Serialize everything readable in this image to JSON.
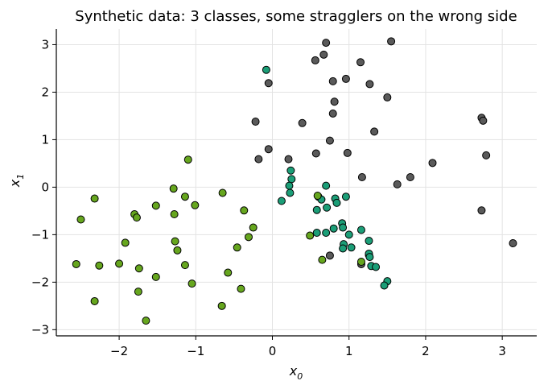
{
  "chart_data": {
    "type": "scatter",
    "title": "Synthetic data: 3 classes, some stragglers on the wrong side",
    "xlabel": "x",
    "xlabel_sub": "0",
    "ylabel": "x",
    "ylabel_sub": "1",
    "xlim": [
      -2.82,
      3.45
    ],
    "ylim": [
      -3.13,
      3.33
    ],
    "xticks": [
      -2,
      -1,
      0,
      1,
      2,
      3
    ],
    "yticks": [
      -3,
      -2,
      -1,
      0,
      1,
      2,
      3
    ],
    "xtick_labels": [
      "−2",
      "−1",
      "0",
      "1",
      "2",
      "3"
    ],
    "ytick_labels": [
      "−3",
      "−2",
      "−1",
      "0",
      "1",
      "2",
      "3"
    ],
    "grid": true,
    "marker_edge_color": "#000000",
    "series": [
      {
        "color": "#5a5a5a",
        "points": [
          [
            0.7,
            3.04
          ],
          [
            1.55,
            3.07
          ],
          [
            0.67,
            2.79
          ],
          [
            0.56,
            2.67
          ],
          [
            1.15,
            2.63
          ],
          [
            -0.05,
            2.19
          ],
          [
            0.79,
            2.23
          ],
          [
            0.96,
            2.28
          ],
          [
            1.27,
            2.17
          ],
          [
            1.5,
            1.89
          ],
          [
            0.81,
            1.8
          ],
          [
            0.79,
            1.55
          ],
          [
            -0.22,
            1.38
          ],
          [
            0.39,
            1.35
          ],
          [
            1.33,
            1.17
          ],
          [
            0.75,
            0.98
          ],
          [
            -0.05,
            0.8
          ],
          [
            0.98,
            0.72
          ],
          [
            0.57,
            0.71
          ],
          [
            -0.18,
            0.59
          ],
          [
            0.21,
            0.59
          ],
          [
            2.09,
            0.51
          ],
          [
            1.17,
            0.21
          ],
          [
            1.8,
            0.21
          ],
          [
            1.63,
            0.06
          ],
          [
            2.73,
            1.46
          ],
          [
            2.75,
            1.4
          ],
          [
            2.79,
            0.67
          ],
          [
            2.73,
            -0.49
          ],
          [
            3.14,
            -1.18
          ],
          [
            0.75,
            -1.44
          ],
          [
            1.16,
            -1.62
          ],
          [
            1.26,
            -1.43
          ]
        ]
      },
      {
        "color": "#1b9e77",
        "points": [
          [
            -0.08,
            2.47
          ],
          [
            0.24,
            0.35
          ],
          [
            0.25,
            0.17
          ],
          [
            0.22,
            0.03
          ],
          [
            0.23,
            -0.12
          ],
          [
            0.12,
            -0.29
          ],
          [
            0.7,
            0.03
          ],
          [
            0.6,
            -0.2
          ],
          [
            0.64,
            -0.26
          ],
          [
            0.82,
            -0.24
          ],
          [
            0.96,
            -0.2
          ],
          [
            0.84,
            -0.33
          ],
          [
            0.58,
            -0.48
          ],
          [
            0.71,
            -0.43
          ],
          [
            0.8,
            -0.87
          ],
          [
            0.91,
            -0.76
          ],
          [
            0.92,
            -0.85
          ],
          [
            1.16,
            -0.9
          ],
          [
            0.58,
            -0.96
          ],
          [
            0.7,
            -0.96
          ],
          [
            1.0,
            -1.0
          ],
          [
            1.26,
            -1.13
          ],
          [
            0.93,
            -1.2
          ],
          [
            0.92,
            -1.29
          ],
          [
            1.03,
            -1.27
          ],
          [
            1.26,
            -1.4
          ],
          [
            1.27,
            -1.47
          ],
          [
            1.29,
            -1.66
          ],
          [
            1.35,
            -1.68
          ],
          [
            1.5,
            -1.98
          ],
          [
            1.46,
            -2.07
          ]
        ]
      },
      {
        "color": "#66a61e",
        "points": [
          [
            -1.1,
            0.58
          ],
          [
            -2.32,
            -0.24
          ],
          [
            -2.5,
            -0.68
          ],
          [
            -1.29,
            -0.03
          ],
          [
            -1.14,
            -0.2
          ],
          [
            -1.52,
            -0.39
          ],
          [
            -1.01,
            -0.38
          ],
          [
            -0.65,
            -0.12
          ],
          [
            -0.37,
            -0.49
          ],
          [
            -1.8,
            -0.57
          ],
          [
            -1.28,
            -0.57
          ],
          [
            -1.77,
            -0.64
          ],
          [
            -0.25,
            -0.85
          ],
          [
            -0.31,
            -1.05
          ],
          [
            -0.46,
            -1.27
          ],
          [
            -1.92,
            -1.17
          ],
          [
            -1.27,
            -1.14
          ],
          [
            -1.24,
            -1.33
          ],
          [
            -2.56,
            -1.62
          ],
          [
            -2.26,
            -1.65
          ],
          [
            -2.0,
            -1.61
          ],
          [
            -1.74,
            -1.71
          ],
          [
            -1.14,
            -1.64
          ],
          [
            -1.52,
            -1.89
          ],
          [
            -0.58,
            -1.8
          ],
          [
            -1.05,
            -2.03
          ],
          [
            -1.75,
            -2.2
          ],
          [
            -0.41,
            -2.14
          ],
          [
            -2.32,
            -2.4
          ],
          [
            -0.66,
            -2.5
          ],
          [
            -1.65,
            -2.81
          ],
          [
            0.49,
            -1.02
          ],
          [
            0.65,
            -1.53
          ],
          [
            1.16,
            -1.57
          ],
          [
            0.59,
            -0.18
          ]
        ]
      }
    ]
  }
}
